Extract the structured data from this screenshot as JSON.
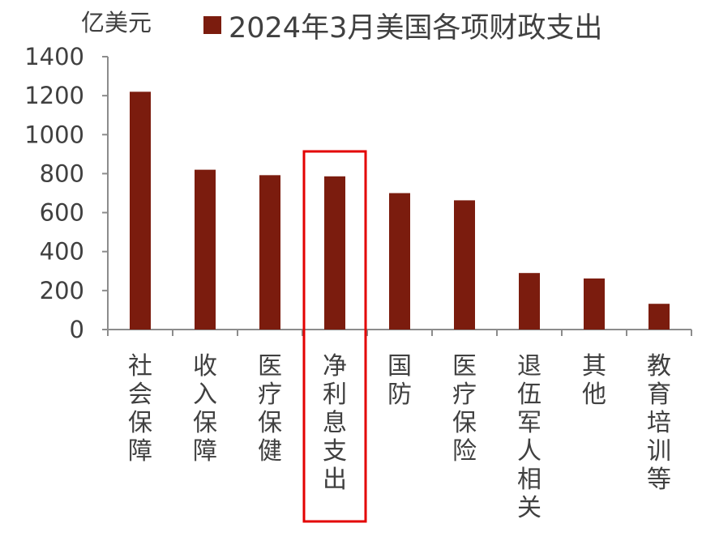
{
  "chart_data": {
    "type": "bar",
    "ylabel": "亿美元",
    "series": [
      {
        "name": "2024年3月美国各项财政支出",
        "values": [
          1220,
          820,
          792,
          786,
          700,
          663,
          290,
          262,
          132
        ]
      }
    ],
    "categories": [
      "社会保障",
      "收入保障",
      "医疗保健",
      "净利息支出",
      "国防",
      "医疗保险",
      "退伍军人相关",
      "其他",
      "教育培训等"
    ],
    "ylim": [
      0,
      1400
    ],
    "yticks": [
      "0",
      "200",
      "400",
      "600",
      "800",
      "1000",
      "1200",
      "1400"
    ],
    "legend_position": "top",
    "highlighted_category": "净利息支出",
    "colors": {
      "bar": "#7B1C0E",
      "highlight_box": "#E30000",
      "axis": "#8C8C8C",
      "text": "#404040"
    }
  }
}
